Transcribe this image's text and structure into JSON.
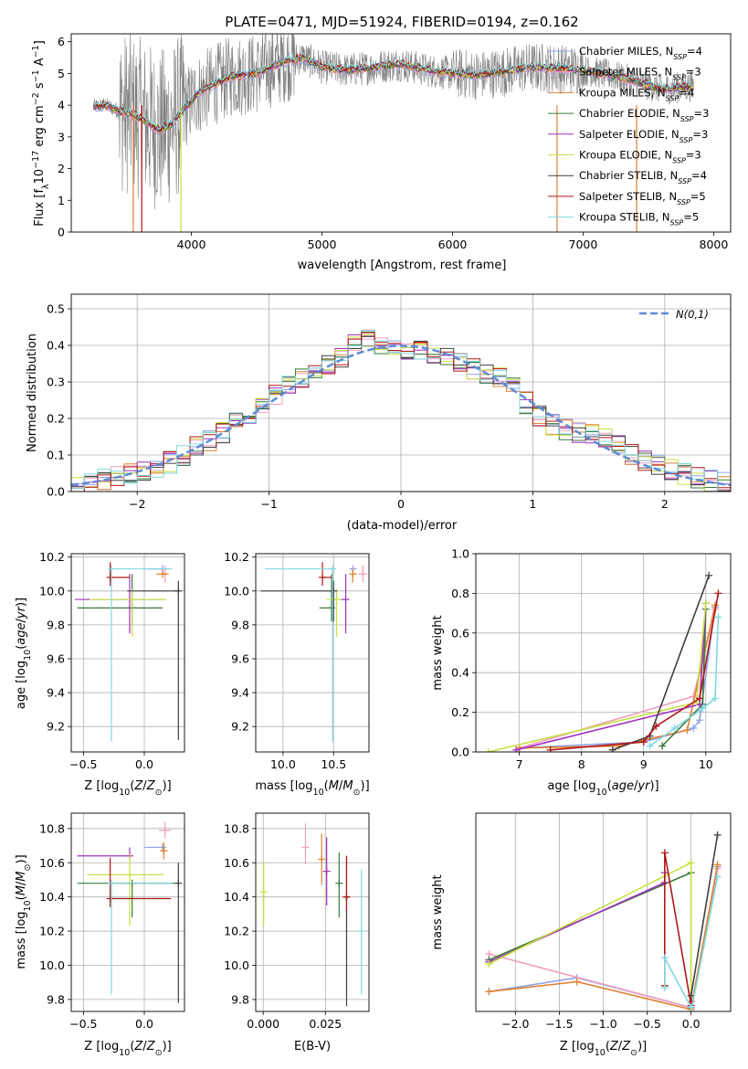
{
  "figure_title": "PLATE=0471, MJD=51924, FIBERID=0194, z=0.162",
  "chart_data": [
    {
      "id": "spectrum",
      "type": "line",
      "title": "PLATE=0471, MJD=51924, FIBERID=0194, z=0.162",
      "xlabel": "wavelength [Angstrom, rest frame]",
      "ylabel": "Flux [f_λ 10^-17 erg cm^-2 s^-1 A^-1]",
      "xlim": [
        3080,
        8130
      ],
      "ylim": [
        0,
        6.25
      ],
      "xticks": [
        4000,
        5000,
        6000,
        7000,
        8000
      ],
      "yticks": [
        0,
        1,
        2,
        3,
        4,
        5,
        6
      ],
      "x_start": 3250,
      "x_end": 7850,
      "continuum": {
        "x": [
          3250,
          3350,
          3450,
          3550,
          3650,
          3750,
          3850,
          3950,
          4050,
          4150,
          4300,
          4500,
          4700,
          4850,
          5000,
          5200,
          5400,
          5600,
          5800,
          6000,
          6200,
          6400,
          6600,
          6800,
          7000,
          7200,
          7400,
          7600,
          7850
        ],
        "y": [
          3.95,
          4.0,
          3.8,
          3.7,
          3.5,
          3.2,
          3.4,
          3.9,
          4.35,
          4.6,
          4.9,
          5.0,
          5.35,
          5.5,
          5.2,
          5.1,
          5.2,
          5.3,
          5.1,
          5.0,
          4.95,
          5.05,
          5.2,
          5.15,
          5.1,
          4.95,
          4.75,
          4.5,
          4.6
        ]
      },
      "observed_color": "#808080",
      "legend_entries": [
        {
          "text": "Chabrier MILES, N",
          "sub": "SSP",
          "suffix": "=4",
          "color": "#8fa5e6"
        },
        {
          "text": "Salpeter MILES, N",
          "sub": "SSP",
          "suffix": "=3",
          "color": "#f0a0c0"
        },
        {
          "text": "Kroupa MILES, N",
          "sub": "SSP",
          "suffix": "=4",
          "color": "#e08030"
        },
        {
          "text": "Chabrier ELODIE, N",
          "sub": "SSP",
          "suffix": "=3",
          "color": "#3a7a3a"
        },
        {
          "text": "Salpeter ELODIE, N",
          "sub": "SSP",
          "suffix": "=3",
          "color": "#a030c0"
        },
        {
          "text": "Kroupa ELODIE, N",
          "sub": "SSP",
          "suffix": "=3",
          "color": "#c8e040"
        },
        {
          "text": "Chabrier STELIB, N",
          "sub": "SSP",
          "suffix": "=4",
          "color": "#404040"
        },
        {
          "text": "Salpeter STELIB, N",
          "sub": "SSP",
          "suffix": "=5",
          "color": "#b01818"
        },
        {
          "text": "Kroupa STELIB, N",
          "sub": "SSP",
          "suffix": "=5",
          "color": "#80d8e0"
        }
      ]
    },
    {
      "id": "residuals",
      "type": "histogram",
      "xlabel": "(data-model)/error",
      "ylabel": "Normed distribution",
      "xlim": [
        -2.5,
        2.5
      ],
      "ylim": [
        0,
        0.54
      ],
      "xticks": [
        -2,
        -1,
        0,
        1,
        2
      ],
      "yticks": [
        0.0,
        0.1,
        0.2,
        0.3,
        0.4,
        0.5
      ],
      "bin_width": 0.1,
      "reference_label": "N(0,1)",
      "reference_color": "#5b8cd6",
      "envelope": {
        "x": [
          -2.5,
          -2.2,
          -2.0,
          -1.8,
          -1.6,
          -1.4,
          -1.2,
          -1.0,
          -0.8,
          -0.6,
          -0.4,
          -0.3,
          -0.2,
          0.0,
          0.2,
          0.4,
          0.6,
          0.8,
          1.0,
          1.2,
          1.4,
          1.6,
          1.8,
          2.0,
          2.2,
          2.5
        ],
        "y": [
          0.02,
          0.035,
          0.05,
          0.07,
          0.11,
          0.15,
          0.2,
          0.25,
          0.3,
          0.33,
          0.38,
          0.43,
          0.41,
          0.39,
          0.38,
          0.36,
          0.33,
          0.31,
          0.22,
          0.17,
          0.16,
          0.14,
          0.09,
          0.07,
          0.04,
          0.02
        ]
      }
    },
    {
      "id": "age_vs_Z",
      "type": "errorbar",
      "xlabel": "Z [log10(Z/Z⊙)]",
      "ylabel": "age  [log10(age/yr)]",
      "xlim": [
        -0.6,
        0.33
      ],
      "ylim": [
        9.05,
        10.22
      ],
      "xticks": [
        -0.5,
        0.0
      ],
      "yticks": [
        9.2,
        9.4,
        9.6,
        9.8,
        10.0,
        10.2
      ],
      "points": [
        {
          "x": 0.15,
          "y": 10.13,
          "xerr": [
            0.15,
            0.0
          ],
          "yerr": [
            0.03,
            0.0
          ],
          "color": "#8fa5e6"
        },
        {
          "x": 0.17,
          "y": 10.1,
          "xerr": [
            0.03,
            0.02
          ],
          "yerr": [
            0.05,
            0.05
          ],
          "color": "#f0a0c0"
        },
        {
          "x": 0.15,
          "y": 10.1,
          "xerr": [
            0.05,
            0.05
          ],
          "yerr": [
            0.02,
            0.02
          ],
          "color": "#e08030"
        },
        {
          "x": -0.1,
          "y": 9.9,
          "xerr": [
            0.45,
            0.25
          ],
          "yerr": [
            0.1,
            0.2
          ],
          "color": "#3a7a3a"
        },
        {
          "x": -0.12,
          "y": 9.95,
          "xerr": [
            0.45,
            0.3
          ],
          "yerr": [
            0.2,
            0.15
          ],
          "color": "#a030c0"
        },
        {
          "x": -0.1,
          "y": 9.95,
          "xerr": [
            0.35,
            0.28
          ],
          "yerr": [
            0.22,
            0.06
          ],
          "color": "#c8e040"
        },
        {
          "x": 0.28,
          "y": 10.0,
          "xerr": [
            0.42,
            0.0
          ],
          "yerr": [
            0.88,
            0.06
          ],
          "color": "#404040"
        },
        {
          "x": -0.28,
          "y": 10.08,
          "xerr": [
            0.0,
            0.16
          ],
          "yerr": [
            0.05,
            0.09
          ],
          "color": "#b01818"
        },
        {
          "x": -0.27,
          "y": 10.13,
          "xerr": [
            0.0,
            0.5
          ],
          "yerr": [
            1.02,
            0.0
          ],
          "color": "#80d8e0"
        }
      ]
    },
    {
      "id": "age_vs_mass",
      "type": "errorbar",
      "xlabel": "mass [log10(M/M⊙)]",
      "ylabel": "",
      "xlim": [
        9.73,
        10.85
      ],
      "ylim": [
        9.05,
        10.22
      ],
      "xticks": [
        10.0,
        10.5
      ],
      "yticks": [
        9.2,
        9.4,
        9.6,
        9.8,
        10.0,
        10.2
      ],
      "points": [
        {
          "x": 10.69,
          "y": 10.13,
          "xerr": [
            0.0,
            0.0
          ],
          "yerr": [
            0.0,
            0.0
          ],
          "color": "#8fa5e6"
        },
        {
          "x": 10.79,
          "y": 10.1,
          "xerr": [
            0.04,
            0.04
          ],
          "yerr": [
            0.05,
            0.05
          ],
          "color": "#f0a0c0"
        },
        {
          "x": 10.69,
          "y": 10.1,
          "xerr": [
            0.0,
            0.04
          ],
          "yerr": [
            0.05,
            0.03
          ],
          "color": "#e08030"
        },
        {
          "x": 10.48,
          "y": 9.9,
          "xerr": [
            0.12,
            0.0
          ],
          "yerr": [
            0.08,
            0.2
          ],
          "color": "#3a7a3a"
        },
        {
          "x": 10.62,
          "y": 9.95,
          "xerr": [
            0.12,
            0.03
          ],
          "yerr": [
            0.2,
            0.15
          ],
          "color": "#a030c0"
        },
        {
          "x": 10.53,
          "y": 9.95,
          "xerr": [
            0.1,
            0.05
          ],
          "yerr": [
            0.22,
            0.06
          ],
          "color": "#c8e040"
        },
        {
          "x": 10.5,
          "y": 10.0,
          "xerr": [
            0.72,
            0.0
          ],
          "yerr": [
            0.18,
            0.06
          ],
          "color": "#404040"
        },
        {
          "x": 10.39,
          "y": 10.08,
          "xerr": [
            0.0,
            0.1
          ],
          "yerr": [
            0.05,
            0.09
          ],
          "color": "#b01818"
        },
        {
          "x": 10.49,
          "y": 10.13,
          "xerr": [
            0.67,
            0.0
          ],
          "yerr": [
            1.02,
            0.0
          ],
          "color": "#80d8e0"
        }
      ]
    },
    {
      "id": "weight_vs_age",
      "type": "line",
      "xlabel": "age  [log10(age/yr)]",
      "ylabel": "mass weight",
      "xlim": [
        6.3,
        10.4
      ],
      "ylim": [
        0.0,
        1.0
      ],
      "xticks": [
        7,
        8,
        9,
        10
      ],
      "yticks": [
        0.0,
        0.2,
        0.4,
        0.6,
        0.8,
        1.0
      ],
      "series": [
        {
          "color": "#8fa5e6",
          "x": [
            7.0,
            9.0,
            9.8,
            9.9,
            10.15
          ],
          "y": [
            0.02,
            0.05,
            0.12,
            0.16,
            0.73
          ]
        },
        {
          "color": "#f0a0c0",
          "x": [
            7.0,
            9.8,
            10.15
          ],
          "y": [
            0.02,
            0.28,
            0.72
          ]
        },
        {
          "color": "#e08030",
          "x": [
            7.0,
            8.6,
            9.7,
            10.15
          ],
          "y": [
            0.02,
            0.03,
            0.11,
            0.74
          ]
        },
        {
          "color": "#3a7a3a",
          "x": [
            9.3,
            9.95,
            10.0
          ],
          "y": [
            0.03,
            0.24,
            0.72
          ]
        },
        {
          "color": "#a030c0",
          "x": [
            6.95,
            9.9,
            10.0
          ],
          "y": [
            0.01,
            0.24,
            0.75
          ]
        },
        {
          "color": "#c8e040",
          "x": [
            6.5,
            9.85,
            10.0
          ],
          "y": [
            0.0,
            0.25,
            0.75
          ]
        },
        {
          "color": "#404040",
          "x": [
            8.5,
            9.1,
            10.05
          ],
          "y": [
            0.01,
            0.08,
            0.89
          ]
        },
        {
          "color": "#b01818",
          "x": [
            7.5,
            9.0,
            9.2,
            9.9,
            10.2
          ],
          "y": [
            0.01,
            0.05,
            0.13,
            0.27,
            0.8
          ]
        },
        {
          "color": "#80d8e0",
          "x": [
            9.1,
            9.5,
            9.95,
            10.15,
            10.2
          ],
          "y": [
            0.03,
            0.12,
            0.22,
            0.27,
            0.68
          ]
        }
      ]
    },
    {
      "id": "mass_vs_Z",
      "type": "errorbar",
      "xlabel": "Z [log10(Z/Z⊙)]",
      "ylabel": "mass [log10(M/M⊙)]",
      "xlim": [
        -0.6,
        0.33
      ],
      "ylim": [
        9.73,
        10.89
      ],
      "xticks": [
        -0.5,
        0.0
      ],
      "yticks": [
        9.8,
        10.0,
        10.2,
        10.4,
        10.6,
        10.8
      ],
      "points": [
        {
          "x": 0.15,
          "y": 10.69,
          "xerr": [
            0.15,
            0.0
          ],
          "yerr": [
            0.0,
            0.0
          ],
          "color": "#8fa5e6"
        },
        {
          "x": 0.17,
          "y": 10.79,
          "xerr": [
            0.05,
            0.05
          ],
          "yerr": [
            0.05,
            0.05
          ],
          "color": "#f0a0c0"
        },
        {
          "x": 0.16,
          "y": 10.67,
          "xerr": [
            0.03,
            0.03
          ],
          "yerr": [
            0.05,
            0.05
          ],
          "color": "#e08030"
        },
        {
          "x": -0.1,
          "y": 10.48,
          "xerr": [
            0.45,
            0.35
          ],
          "yerr": [
            0.2,
            0.0
          ],
          "color": "#3a7a3a"
        },
        {
          "x": -0.12,
          "y": 10.64,
          "xerr": [
            0.43,
            0.0
          ],
          "yerr": [
            0.0,
            0.05
          ],
          "color": "#a030c0"
        },
        {
          "x": -0.12,
          "y": 10.53,
          "xerr": [
            0.35,
            0.28
          ],
          "yerr": [
            0.3,
            0.12
          ],
          "color": "#c8e040"
        },
        {
          "x": 0.28,
          "y": 10.48,
          "xerr": [
            0.0,
            0.0
          ],
          "yerr": [
            0.7,
            0.12
          ],
          "color": "#404040"
        },
        {
          "x": -0.28,
          "y": 10.39,
          "xerr": [
            0.0,
            0.5
          ],
          "yerr": [
            0.05,
            0.24
          ],
          "color": "#b01818"
        },
        {
          "x": -0.27,
          "y": 10.48,
          "xerr": [
            0.0,
            0.5
          ],
          "yerr": [
            0.65,
            0.0
          ],
          "color": "#80d8e0"
        }
      ]
    },
    {
      "id": "mass_vs_ebv",
      "type": "errorbar",
      "xlabel": "E(B-V)",
      "ylabel": "",
      "xlim": [
        -0.003,
        0.0425
      ],
      "ylim": [
        9.73,
        10.89
      ],
      "xticks": [
        0.0,
        0.025
      ],
      "yticks": [
        9.8,
        10.0,
        10.2,
        10.4,
        10.6,
        10.8
      ],
      "xtick_labels": [
        "0.000",
        "0.025"
      ],
      "points": [
        {
          "x": 0.017,
          "y": 10.69,
          "yerr": [
            0.1,
            0.14
          ],
          "color": "#f0a0c0"
        },
        {
          "x": 0.0235,
          "y": 10.62,
          "yerr": [
            0.15,
            0.15
          ],
          "color": "#e08030"
        },
        {
          "x": 0.0255,
          "y": 10.55,
          "yerr": [
            0.2,
            0.2
          ],
          "color": "#a030c0"
        },
        {
          "x": 0.0305,
          "y": 10.48,
          "yerr": [
            0.2,
            0.18
          ],
          "color": "#3a7a3a"
        },
        {
          "x": 0.0335,
          "y": 10.4,
          "yerr": [
            0.64,
            0.24
          ],
          "color": "#404040"
        },
        {
          "x": 0.0335,
          "y": 10.4,
          "yerr": [
            0.08,
            0.24
          ],
          "color": "#b01818"
        },
        {
          "x": 0.0395,
          "y": 10.2,
          "yerr": [
            0.37,
            0.36
          ],
          "color": "#80d8e0"
        },
        {
          "x": 0.0002,
          "y": 10.43,
          "yerr": [
            0.2,
            0.17
          ],
          "color": "#c8e040"
        }
      ]
    },
    {
      "id": "weight_vs_Z",
      "type": "line",
      "xlabel": "Z [log10(Z/Z⊙)]",
      "ylabel": "mass weight",
      "xlim": [
        -2.45,
        0.45
      ],
      "ylim": [
        0.0,
        1.0
      ],
      "xticks": [
        -2.0,
        -1.5,
        -1.0,
        -0.5,
        0.0
      ],
      "series": [
        {
          "color": "#8fa5e6",
          "x": [
            -2.3,
            -1.3,
            0.0,
            0.3
          ],
          "y": [
            0.1,
            0.17,
            0.02,
            0.73
          ]
        },
        {
          "color": "#f0a0c0",
          "x": [
            -2.3,
            0.0,
            0.3
          ],
          "y": [
            0.29,
            0.02,
            0.72
          ]
        },
        {
          "color": "#e08030",
          "x": [
            -2.3,
            -1.3,
            0.0,
            0.3
          ],
          "y": [
            0.1,
            0.15,
            0.01,
            0.74
          ]
        },
        {
          "color": "#3a7a3a",
          "x": [
            -2.3,
            0.0,
            0.0
          ],
          "y": [
            0.26,
            0.7,
            0.02
          ]
        },
        {
          "color": "#a030c0",
          "x": [
            -2.3,
            -0.3,
            -0.3
          ],
          "y": [
            0.25,
            0.65,
            0.7
          ]
        },
        {
          "color": "#c8e040",
          "x": [
            -2.3,
            0.0,
            0.0
          ],
          "y": [
            0.24,
            0.75,
            0.02
          ]
        },
        {
          "color": "#404040",
          "x": [
            0.0,
            0.0,
            0.3
          ],
          "y": [
            0.02,
            0.08,
            0.89
          ]
        },
        {
          "color": "#b01818",
          "x": [
            -0.3,
            -0.3,
            0.0,
            0.0
          ],
          "y": [
            0.13,
            0.8,
            0.03,
            0.05
          ]
        },
        {
          "color": "#80d8e0",
          "x": [
            -0.3,
            -0.3,
            0.0,
            0.0,
            0.3
          ],
          "y": [
            0.12,
            0.27,
            0.02,
            0.0,
            0.68
          ]
        }
      ]
    }
  ]
}
